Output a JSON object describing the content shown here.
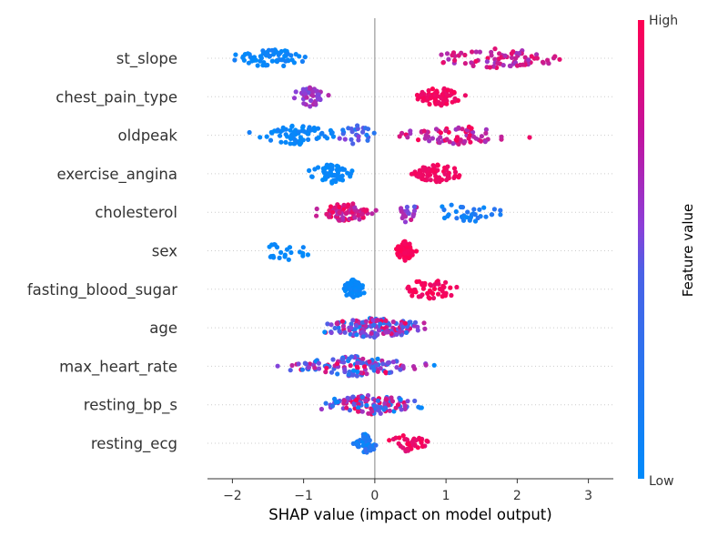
{
  "chart_data": {
    "type": "scatter",
    "subtype": "shap-beeswarm",
    "xlabel": "SHAP value (impact on model output)",
    "xlim": [
      -2.35,
      3.35
    ],
    "xticks": [
      -2,
      -1,
      0,
      1,
      2,
      3
    ],
    "xtick_labels": [
      "−2",
      "−1",
      "0",
      "1",
      "2",
      "3"
    ],
    "zero_line": true,
    "colorbar": {
      "title": "Feature value",
      "high_label": "High",
      "low_label": "Low",
      "low_color": "#008bfb",
      "high_color": "#ff0052",
      "mid_color": "#8c3fd8"
    },
    "features": [
      {
        "name": "st_slope",
        "clusters": [
          {
            "lo": -2.1,
            "hi": -0.8,
            "n": 70,
            "c": [
              0.0,
              0.08
            ]
          },
          {
            "lo": 0.35,
            "hi": 3.05,
            "n": 80,
            "c": [
              0.55,
              0.95
            ]
          }
        ]
      },
      {
        "name": "chest_pain_type",
        "clusters": [
          {
            "lo": -1.25,
            "hi": -0.55,
            "n": 40,
            "c": [
              0.4,
              0.7
            ]
          },
          {
            "lo": 0.4,
            "hi": 1.35,
            "n": 70,
            "c": [
              0.9,
              1.0
            ]
          }
        ]
      },
      {
        "name": "oldpeak",
        "clusters": [
          {
            "lo": -1.9,
            "hi": -0.3,
            "n": 75,
            "c": [
              0.0,
              0.08
            ]
          },
          {
            "lo": -0.6,
            "hi": 0.1,
            "n": 25,
            "c": [
              0.05,
              0.5
            ]
          },
          {
            "lo": 0.0,
            "hi": 2.25,
            "n": 70,
            "c": [
              0.55,
              1.0
            ]
          }
        ]
      },
      {
        "name": "exercise_angina",
        "clusters": [
          {
            "lo": -1.05,
            "hi": -0.2,
            "n": 65,
            "c": [
              0.0,
              0.05
            ]
          },
          {
            "lo": 0.4,
            "hi": 1.35,
            "n": 65,
            "c": [
              0.9,
              1.0
            ]
          }
        ]
      },
      {
        "name": "cholesterol",
        "clusters": [
          {
            "lo": -0.95,
            "hi": 0.15,
            "n": 85,
            "c": [
              0.6,
              1.0
            ]
          },
          {
            "lo": 0.15,
            "hi": 0.7,
            "n": 20,
            "c": [
              0.3,
              0.8
            ]
          },
          {
            "lo": 0.5,
            "hi": 2.15,
            "n": 35,
            "c": [
              0.0,
              0.15
            ]
          }
        ]
      },
      {
        "name": "sex",
        "clusters": [
          {
            "lo": -1.75,
            "hi": -0.75,
            "n": 22,
            "c": [
              0.0,
              0.05
            ]
          },
          {
            "lo": 0.25,
            "hi": 0.6,
            "n": 75,
            "c": [
              0.95,
              1.0
            ]
          }
        ]
      },
      {
        "name": "fasting_blood_sugar",
        "clusters": [
          {
            "lo": -0.5,
            "hi": -0.1,
            "n": 75,
            "c": [
              0.0,
              0.06
            ]
          },
          {
            "lo": 0.15,
            "hi": 1.4,
            "n": 50,
            "c": [
              0.9,
              1.0
            ]
          }
        ]
      },
      {
        "name": "age",
        "clusters": [
          {
            "lo": -1.1,
            "hi": 1.1,
            "n": 150,
            "c": [
              0.0,
              1.0
            ]
          }
        ]
      },
      {
        "name": "max_heart_rate",
        "clusters": [
          {
            "lo": -1.55,
            "hi": 1.0,
            "n": 130,
            "c": [
              0.0,
              1.0
            ]
          }
        ]
      },
      {
        "name": "resting_bp_s",
        "clusters": [
          {
            "lo": -1.1,
            "hi": 1.0,
            "n": 120,
            "c": [
              0.0,
              1.0
            ]
          }
        ]
      },
      {
        "name": "resting_ecg",
        "clusters": [
          {
            "lo": -0.35,
            "hi": 0.1,
            "n": 55,
            "c": [
              0.0,
              0.2
            ]
          },
          {
            "lo": 0.1,
            "hi": 0.9,
            "n": 40,
            "c": [
              0.85,
              1.0
            ]
          }
        ]
      }
    ]
  }
}
